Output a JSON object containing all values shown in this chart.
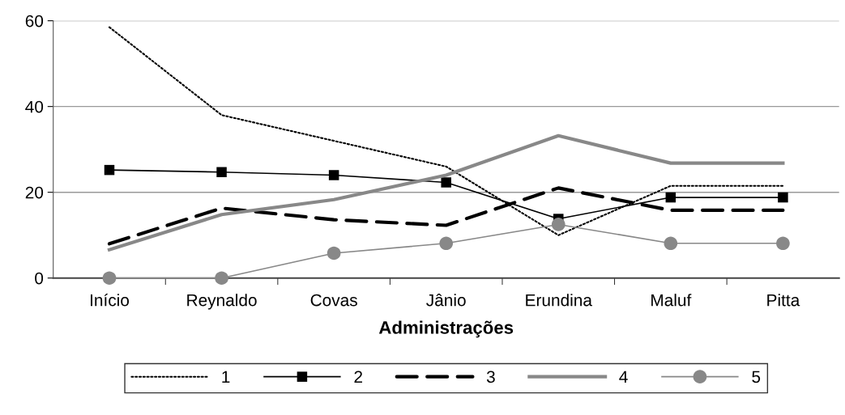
{
  "chart_data": {
    "type": "line",
    "xlabel": "Administrações",
    "categories": [
      "Início",
      "Reynaldo",
      "Covas",
      "Jânio",
      "Erundina",
      "Maluf",
      "Pitta"
    ],
    "ylim": [
      0,
      60
    ],
    "yticks": [
      0,
      20,
      40,
      60
    ],
    "grid": "y",
    "legend": "bottom",
    "series": [
      {
        "name": "1",
        "color": "#000000",
        "line_style": "dotted",
        "marker": "none",
        "values": [
          58.5,
          38,
          32,
          26,
          10,
          21.5,
          21.5
        ]
      },
      {
        "name": "2",
        "color": "#000000",
        "line_style": "solid",
        "marker": "square",
        "values": [
          25.2,
          24.7,
          24,
          22.3,
          13.8,
          18.8,
          18.8
        ]
      },
      {
        "name": "3",
        "color": "#000000",
        "line_style": "dashed",
        "marker": "none",
        "values": [
          8,
          16.3,
          13.6,
          12.3,
          21,
          15.8,
          15.8
        ]
      },
      {
        "name": "4",
        "color": "#888888",
        "line_style": "solid",
        "marker": "none",
        "values": [
          6.6,
          14.8,
          18.3,
          24,
          33.2,
          26.8,
          26.8
        ]
      },
      {
        "name": "5",
        "color": "#888888",
        "line_style": "solid",
        "marker": "circle",
        "values": [
          0,
          0,
          5.8,
          8.1,
          12.5,
          8.1,
          8.1
        ]
      }
    ]
  }
}
